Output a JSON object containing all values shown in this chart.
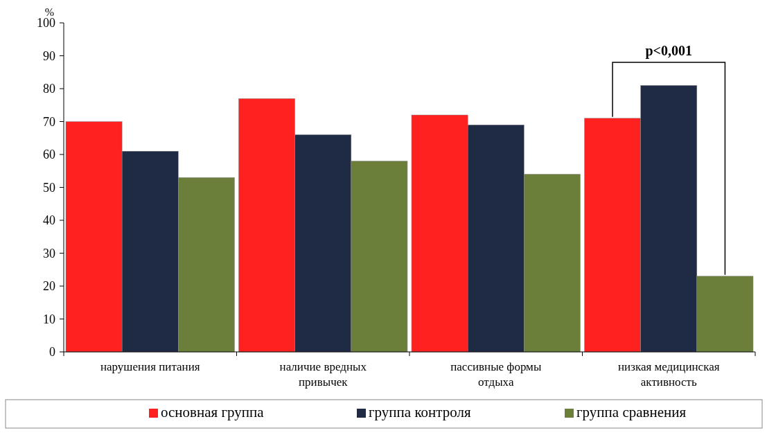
{
  "chart_data": {
    "type": "bar",
    "ylabel": "%",
    "categories": [
      "нарушения питания",
      "наличие вредных привычек",
      "пассивные формы отдыха",
      "низкая медицинская активность"
    ],
    "series": [
      {
        "name": "основная группа",
        "color": "#ff2020",
        "values": [
          70,
          77,
          72,
          71
        ]
      },
      {
        "name": "группа контроля",
        "color": "#1f2a44",
        "values": [
          61,
          66,
          69,
          81
        ]
      },
      {
        "name": "группа сравнения",
        "color": "#6b7f3a",
        "values": [
          53,
          58,
          54,
          23
        ]
      }
    ],
    "ylim": [
      0,
      100
    ],
    "yticks": [
      0,
      10,
      20,
      30,
      40,
      50,
      60,
      70,
      80,
      90,
      100
    ],
    "legend": "bottom",
    "annotations": [
      "p<0,001"
    ]
  }
}
